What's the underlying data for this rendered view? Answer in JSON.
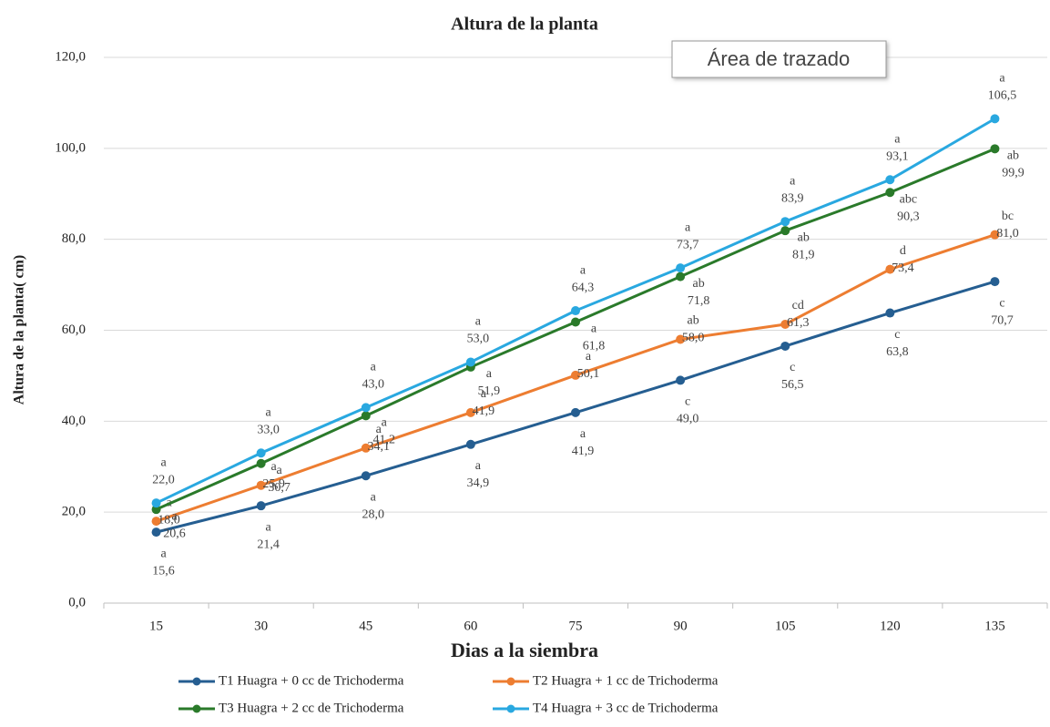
{
  "chart_data": {
    "type": "line",
    "title": "Altura de la planta",
    "x_label": "Dias a la siembra",
    "y_label": "Altura de la planta( cm)",
    "tooltip": "Área de trazado",
    "categories": [
      "15",
      "30",
      "45",
      "60",
      "75",
      "90",
      "105",
      "120",
      "135"
    ],
    "ylim": [
      0,
      120
    ],
    "yticks": [
      {
        "value": 0,
        "label": "0,0"
      },
      {
        "value": 20,
        "label": "20,0"
      },
      {
        "value": 40,
        "label": "40,0"
      },
      {
        "value": 60,
        "label": "60,0"
      },
      {
        "value": 80,
        "label": "80,0"
      },
      {
        "value": 100,
        "label": "100,0"
      },
      {
        "value": 120,
        "label": "120,0"
      }
    ],
    "grid": true,
    "legend": "bottom",
    "series": [
      {
        "name": "T1  Huagra + 0 cc de Trichoderma",
        "color": "#255e91",
        "values": [
          15.6,
          21.4,
          28.0,
          34.9,
          41.9,
          49.0,
          56.5,
          63.8,
          70.7
        ],
        "value_labels": [
          "15,6",
          "21,4",
          "28,0",
          "34,9",
          "41,9",
          "49,0",
          "56,5",
          "63,8",
          "70,7"
        ],
        "significance": [
          "a",
          "a",
          "a",
          "a",
          "a",
          "c",
          "c",
          "c",
          "c"
        ]
      },
      {
        "name": "T2  Huagra + 1 cc de Trichoderma",
        "color": "#ed7d31",
        "values": [
          18.0,
          25.9,
          34.1,
          41.9,
          50.1,
          58.0,
          61.3,
          73.4,
          81.0
        ],
        "value_labels": [
          "18,0",
          "25,9",
          "34,1",
          "41,9",
          "50,1",
          "58,0",
          "61,3",
          "73,4",
          "81,0"
        ],
        "significance": [
          "a",
          "a",
          "a",
          "a",
          "a",
          "ab",
          "cd",
          "d",
          "bc"
        ]
      },
      {
        "name": "T3  Huagra + 2 cc de Trichoderma",
        "color": "#2a7a2a",
        "values": [
          20.6,
          30.7,
          41.2,
          51.9,
          61.8,
          71.8,
          81.9,
          90.3,
          99.9
        ],
        "value_labels": [
          "20,6",
          "30,7",
          "41,2",
          "51,9",
          "61,8",
          "71,8",
          "81,9",
          "90,3",
          "99,9"
        ],
        "significance": [
          "a",
          "a",
          "a",
          "a",
          "a",
          "ab",
          "ab",
          "abc",
          "ab"
        ]
      },
      {
        "name": "T4  Huagra + 3 cc de Trichoderma",
        "color": "#29a8e0",
        "values": [
          22.0,
          33.0,
          43.0,
          53.0,
          64.3,
          73.7,
          83.9,
          93.1,
          106.5
        ],
        "value_labels": [
          "22,0",
          "33,0",
          "43,0",
          "53,0",
          "64,3",
          "73,7",
          "83,9",
          "93,1",
          "106,5"
        ],
        "significance": [
          "a",
          "a",
          "a",
          "a",
          "a",
          "a",
          "a",
          "a",
          "a"
        ]
      }
    ]
  }
}
